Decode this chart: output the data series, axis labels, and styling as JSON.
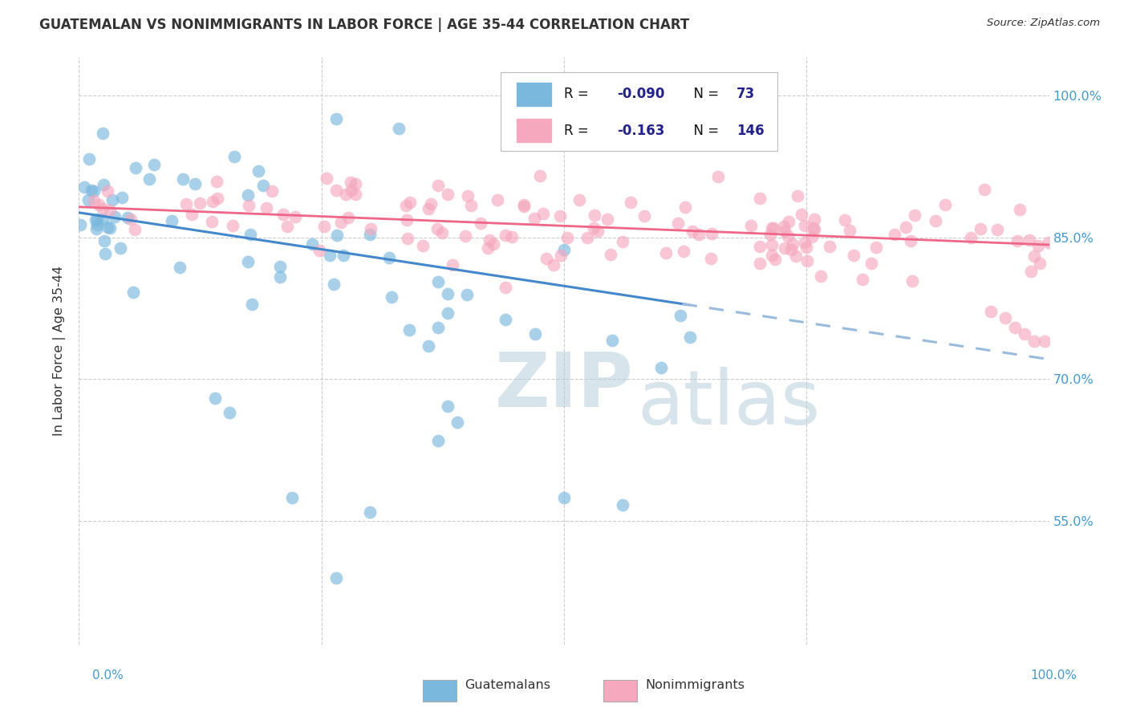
{
  "title": "GUATEMALAN VS NONIMMIGRANTS IN LABOR FORCE | AGE 35-44 CORRELATION CHART",
  "source": "Source: ZipAtlas.com",
  "ylabel": "In Labor Force | Age 35-44",
  "ytick_labels": [
    "55.0%",
    "70.0%",
    "85.0%",
    "100.0%"
  ],
  "ytick_vals": [
    0.55,
    0.7,
    0.85,
    1.0
  ],
  "xlim": [
    0.0,
    1.0
  ],
  "ylim": [
    0.42,
    1.04
  ],
  "legend": {
    "guatemalan_R": "-0.090",
    "guatemalan_N": "73",
    "nonimmigrant_R": "-0.163",
    "nonimmigrant_N": "146"
  },
  "blue_color": "#7ab8de",
  "pink_color": "#f5a8be",
  "trend_blue_solid": "#4488cc",
  "trend_blue_dashed": "#99bbdd",
  "trend_pink": "#ee6688",
  "watermark_color": "#ccdde8",
  "background_color": "#ffffff",
  "grid_color": "#cccccc",
  "grid_style": "dashed",
  "title_color": "#333333",
  "axis_label_color": "#4499cc",
  "legend_text_color": "#222288"
}
